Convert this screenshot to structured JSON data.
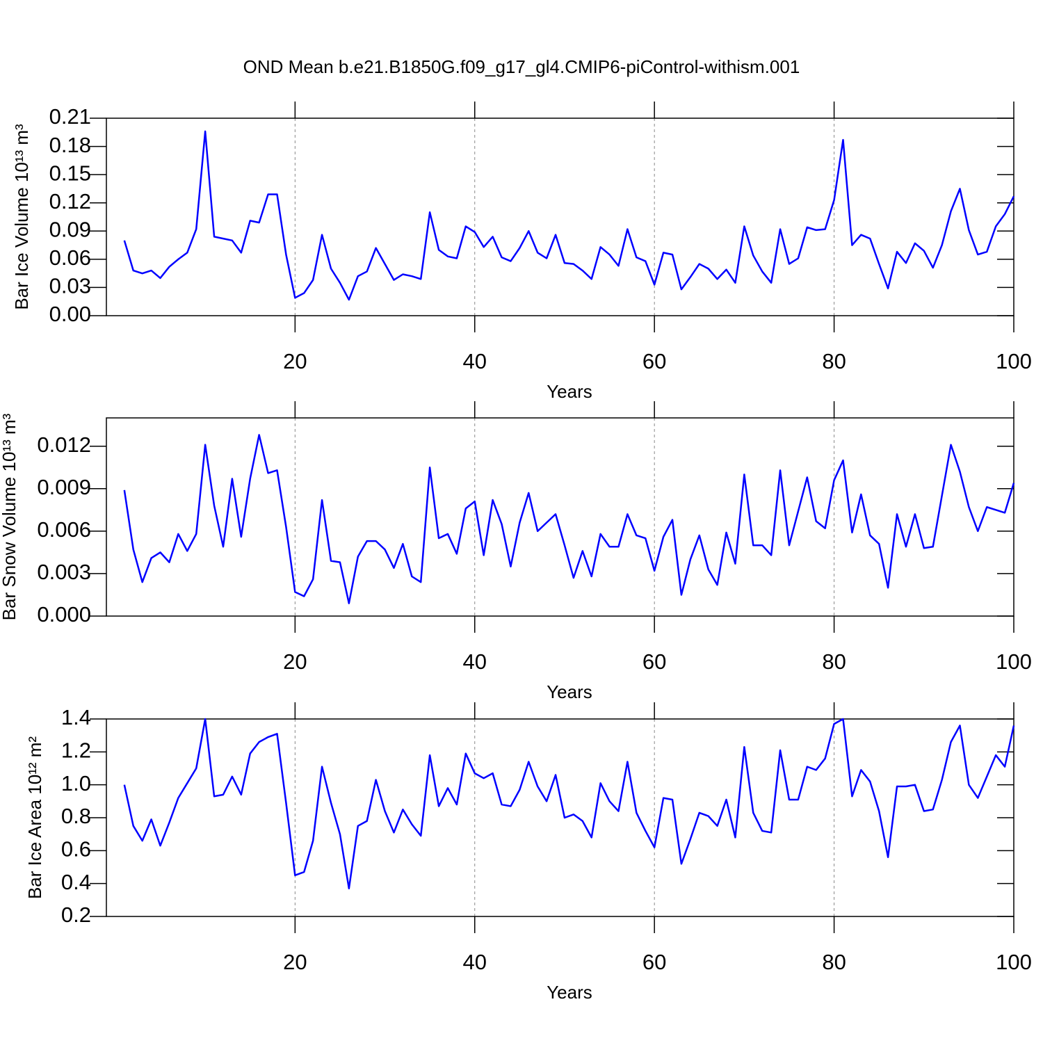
{
  "chart_data": [
    {
      "type": "line",
      "title": "OND Mean b.e21.B1850G.f09_g17_gl4.CMIP6-piControl-withism.001",
      "ylabel": "Bar Ice Volume 10¹³ m³",
      "xlabel": "Years",
      "color": "#0000ff",
      "grid": true,
      "xlim": [
        -1,
        100
      ],
      "xticks": [
        20,
        40,
        60,
        80,
        100
      ],
      "ylim": [
        0,
        0.21
      ],
      "yticks": [
        {
          "value": 0,
          "label": "0.00"
        },
        0.03,
        0.06,
        0.09,
        0.12,
        0.15,
        0.18,
        0.21
      ],
      "x": [
        1,
        2,
        3,
        4,
        5,
        6,
        7,
        8,
        9,
        10,
        11,
        12,
        13,
        14,
        15,
        16,
        17,
        18,
        19,
        20,
        21,
        22,
        23,
        24,
        25,
        26,
        27,
        28,
        29,
        30,
        31,
        32,
        33,
        34,
        35,
        36,
        37,
        38,
        39,
        40,
        41,
        42,
        43,
        44,
        45,
        46,
        47,
        48,
        49,
        50,
        51,
        52,
        53,
        54,
        55,
        56,
        57,
        58,
        59,
        60,
        61,
        62,
        63,
        64,
        65,
        66,
        67,
        68,
        69,
        70,
        71,
        72,
        73,
        74,
        75,
        76,
        77,
        78,
        79,
        80,
        81,
        82,
        83,
        84,
        85,
        86,
        87,
        88,
        89,
        90,
        91,
        92,
        93,
        94,
        95,
        96,
        97,
        98,
        99,
        100
      ],
      "values": [
        0.08,
        0.048,
        0.045,
        0.048,
        0.04,
        0.052,
        0.06,
        0.067,
        0.092,
        0.196,
        0.084,
        0.082,
        0.08,
        0.067,
        0.101,
        0.099,
        0.129,
        0.129,
        0.065,
        0.019,
        0.024,
        0.038,
        0.086,
        0.05,
        0.035,
        0.017,
        0.042,
        0.047,
        0.072,
        0.055,
        0.038,
        0.044,
        0.042,
        0.039,
        0.11,
        0.07,
        0.063,
        0.061,
        0.095,
        0.089,
        0.073,
        0.084,
        0.062,
        0.058,
        0.072,
        0.09,
        0.067,
        0.061,
        0.086,
        0.056,
        0.055,
        0.048,
        0.039,
        0.073,
        0.065,
        0.053,
        0.092,
        0.062,
        0.058,
        0.033,
        0.067,
        0.065,
        0.028,
        0.041,
        0.055,
        0.05,
        0.039,
        0.049,
        0.035,
        0.095,
        0.064,
        0.047,
        0.035,
        0.092,
        0.055,
        0.061,
        0.094,
        0.091,
        0.092,
        0.123,
        0.187,
        0.075,
        0.086,
        0.082,
        0.055,
        0.029,
        0.068,
        0.056,
        0.077,
        0.069,
        0.051,
        0.075,
        0.111,
        0.135,
        0.091,
        0.065,
        0.068,
        0.095,
        0.108,
        0.127
      ]
    },
    {
      "type": "line",
      "ylabel": "Bar Snow Volume 10¹³ m³",
      "xlabel": "Years",
      "color": "#0000ff",
      "grid": true,
      "xlim": [
        -1,
        100
      ],
      "xticks": [
        20,
        40,
        60,
        80,
        100
      ],
      "ylim": [
        0,
        0.014
      ],
      "yticks": [
        {
          "value": 0,
          "label": "0.000"
        },
        0.003,
        0.006,
        0.009,
        0.012
      ],
      "x": [
        1,
        2,
        3,
        4,
        5,
        6,
        7,
        8,
        9,
        10,
        11,
        12,
        13,
        14,
        15,
        16,
        17,
        18,
        19,
        20,
        21,
        22,
        23,
        24,
        25,
        26,
        27,
        28,
        29,
        30,
        31,
        32,
        33,
        34,
        35,
        36,
        37,
        38,
        39,
        40,
        41,
        42,
        43,
        44,
        45,
        46,
        47,
        48,
        49,
        50,
        51,
        52,
        53,
        54,
        55,
        56,
        57,
        58,
        59,
        60,
        61,
        62,
        63,
        64,
        65,
        66,
        67,
        68,
        69,
        70,
        71,
        72,
        73,
        74,
        75,
        76,
        77,
        78,
        79,
        80,
        81,
        82,
        83,
        84,
        85,
        86,
        87,
        88,
        89,
        90,
        91,
        92,
        93,
        94,
        95,
        96,
        97,
        98,
        99,
        100
      ],
      "values": [
        0.0089,
        0.0047,
        0.0024,
        0.0041,
        0.0045,
        0.0038,
        0.0058,
        0.0046,
        0.0058,
        0.0121,
        0.0078,
        0.0049,
        0.0097,
        0.0056,
        0.0097,
        0.0128,
        0.0101,
        0.0103,
        0.0063,
        0.0017,
        0.0014,
        0.0026,
        0.0082,
        0.0039,
        0.0038,
        0.0009,
        0.0042,
        0.0053,
        0.0053,
        0.0047,
        0.0034,
        0.0051,
        0.0028,
        0.0024,
        0.0105,
        0.0055,
        0.0058,
        0.0044,
        0.0076,
        0.0081,
        0.0043,
        0.0082,
        0.0065,
        0.0035,
        0.0066,
        0.0087,
        0.006,
        0.0066,
        0.0072,
        0.005,
        0.0027,
        0.0046,
        0.0028,
        0.0058,
        0.0049,
        0.0049,
        0.0072,
        0.0057,
        0.0055,
        0.0032,
        0.0056,
        0.0068,
        0.0015,
        0.004,
        0.0057,
        0.0033,
        0.0022,
        0.0059,
        0.0037,
        0.01,
        0.005,
        0.005,
        0.0043,
        0.0103,
        0.005,
        0.0074,
        0.0098,
        0.0067,
        0.0062,
        0.0096,
        0.011,
        0.0059,
        0.0086,
        0.0057,
        0.0051,
        0.002,
        0.0072,
        0.0049,
        0.0072,
        0.0048,
        0.0049,
        0.0085,
        0.0121,
        0.0102,
        0.0077,
        0.006,
        0.0077,
        0.0075,
        0.0073,
        0.0094
      ]
    },
    {
      "type": "line",
      "ylabel": "Bar Ice Area 10¹² m²",
      "xlabel": "Years",
      "color": "#0000ff",
      "grid": true,
      "xlim": [
        -1,
        100
      ],
      "xticks": [
        20,
        40,
        60,
        80,
        100
      ],
      "ylim": [
        0.2,
        1.4
      ],
      "yticks": [
        0.2,
        0.4,
        0.6,
        0.8,
        {
          "value": 1,
          "label": "1.0"
        },
        1.2,
        1.4
      ],
      "x": [
        1,
        2,
        3,
        4,
        5,
        6,
        7,
        8,
        9,
        10,
        11,
        12,
        13,
        14,
        15,
        16,
        17,
        18,
        19,
        20,
        21,
        22,
        23,
        24,
        25,
        26,
        27,
        28,
        29,
        30,
        31,
        32,
        33,
        34,
        35,
        36,
        37,
        38,
        39,
        40,
        41,
        42,
        43,
        44,
        45,
        46,
        47,
        48,
        49,
        50,
        51,
        52,
        53,
        54,
        55,
        56,
        57,
        58,
        59,
        60,
        61,
        62,
        63,
        64,
        65,
        66,
        67,
        68,
        69,
        70,
        71,
        72,
        73,
        74,
        75,
        76,
        77,
        78,
        79,
        80,
        81,
        82,
        83,
        84,
        85,
        86,
        87,
        88,
        89,
        90,
        91,
        92,
        93,
        94,
        95,
        96,
        97,
        98,
        99,
        100
      ],
      "values": [
        1.0,
        0.75,
        0.66,
        0.79,
        0.63,
        0.77,
        0.92,
        1.01,
        1.1,
        1.4,
        0.93,
        0.94,
        1.05,
        0.94,
        1.19,
        1.26,
        1.29,
        1.31,
        0.89,
        0.45,
        0.47,
        0.66,
        1.11,
        0.89,
        0.7,
        0.37,
        0.75,
        0.78,
        1.03,
        0.84,
        0.71,
        0.85,
        0.76,
        0.69,
        1.18,
        0.87,
        0.98,
        0.88,
        1.19,
        1.07,
        1.04,
        1.07,
        0.88,
        0.87,
        0.97,
        1.14,
        0.99,
        0.9,
        1.06,
        0.8,
        0.82,
        0.78,
        0.68,
        1.01,
        0.9,
        0.84,
        1.14,
        0.83,
        0.72,
        0.62,
        0.92,
        0.91,
        0.52,
        0.67,
        0.83,
        0.81,
        0.75,
        0.91,
        0.68,
        1.23,
        0.83,
        0.72,
        0.71,
        1.21,
        0.91,
        0.91,
        1.11,
        1.09,
        1.16,
        1.37,
        1.4,
        0.93,
        1.09,
        1.02,
        0.84,
        0.56,
        0.99,
        0.99,
        1.0,
        0.84,
        0.85,
        1.03,
        1.26,
        1.36,
        1.0,
        0.92,
        1.05,
        1.18,
        1.11,
        1.36
      ]
    }
  ]
}
